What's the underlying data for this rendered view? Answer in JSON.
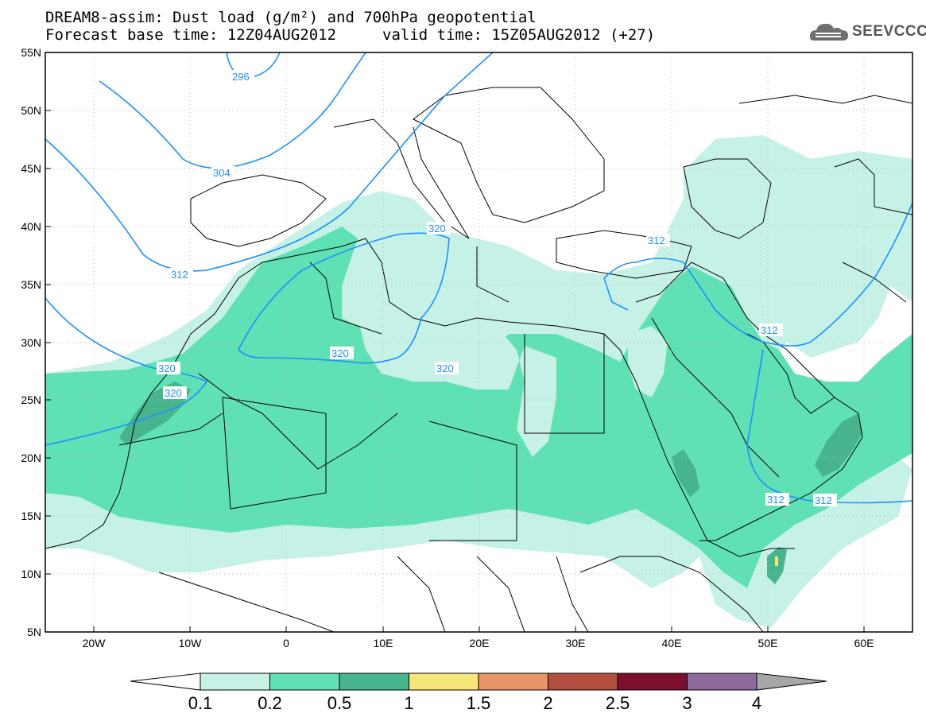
{
  "header": {
    "title_line_1": "DREAM8-assim: Dust load (g/m²) and 700hPa geopotential",
    "title_line_2_left": "Forecast base time: 12Z04AUG2012",
    "title_line_2_right": "valid time: 15Z05AUG2012 (+27)",
    "logo_text": "SEEVCCC"
  },
  "map": {
    "projection": "lat-lon",
    "lon_range": [
      -25,
      65
    ],
    "lat_range": [
      5,
      55
    ],
    "lon_ticks": [
      "20W",
      "10W",
      "0",
      "10E",
      "20E",
      "30E",
      "40E",
      "50E",
      "60E"
    ],
    "lat_ticks": [
      "55N",
      "50N",
      "45N",
      "40N",
      "35N",
      "30N",
      "25N",
      "20N",
      "15N",
      "10N",
      "5N"
    ],
    "grid": "dotted",
    "contour_labels": [
      "296",
      "304",
      "312",
      "320",
      "320",
      "320",
      "320",
      "320",
      "312",
      "312",
      "312",
      "312",
      "312"
    ]
  },
  "colorbar": {
    "labels": [
      "0.1",
      "0.2",
      "0.5",
      "1",
      "1.5",
      "2",
      "2.5",
      "3",
      "4"
    ],
    "colors": [
      "#c6f1e6",
      "#5fe0b5",
      "#47b48d",
      "#f5e67a",
      "#e9956a",
      "#b24f3f",
      "#7c0f2c",
      "#8c6b9c",
      "#a7a7a7"
    ],
    "under_color": "#ffffff"
  },
  "fields": {
    "dust_colors": {
      "light": "#c6f1e6",
      "medium": "#5fe0b5",
      "dark": "#47b48d"
    },
    "contour_color": "#1e90ff"
  }
}
